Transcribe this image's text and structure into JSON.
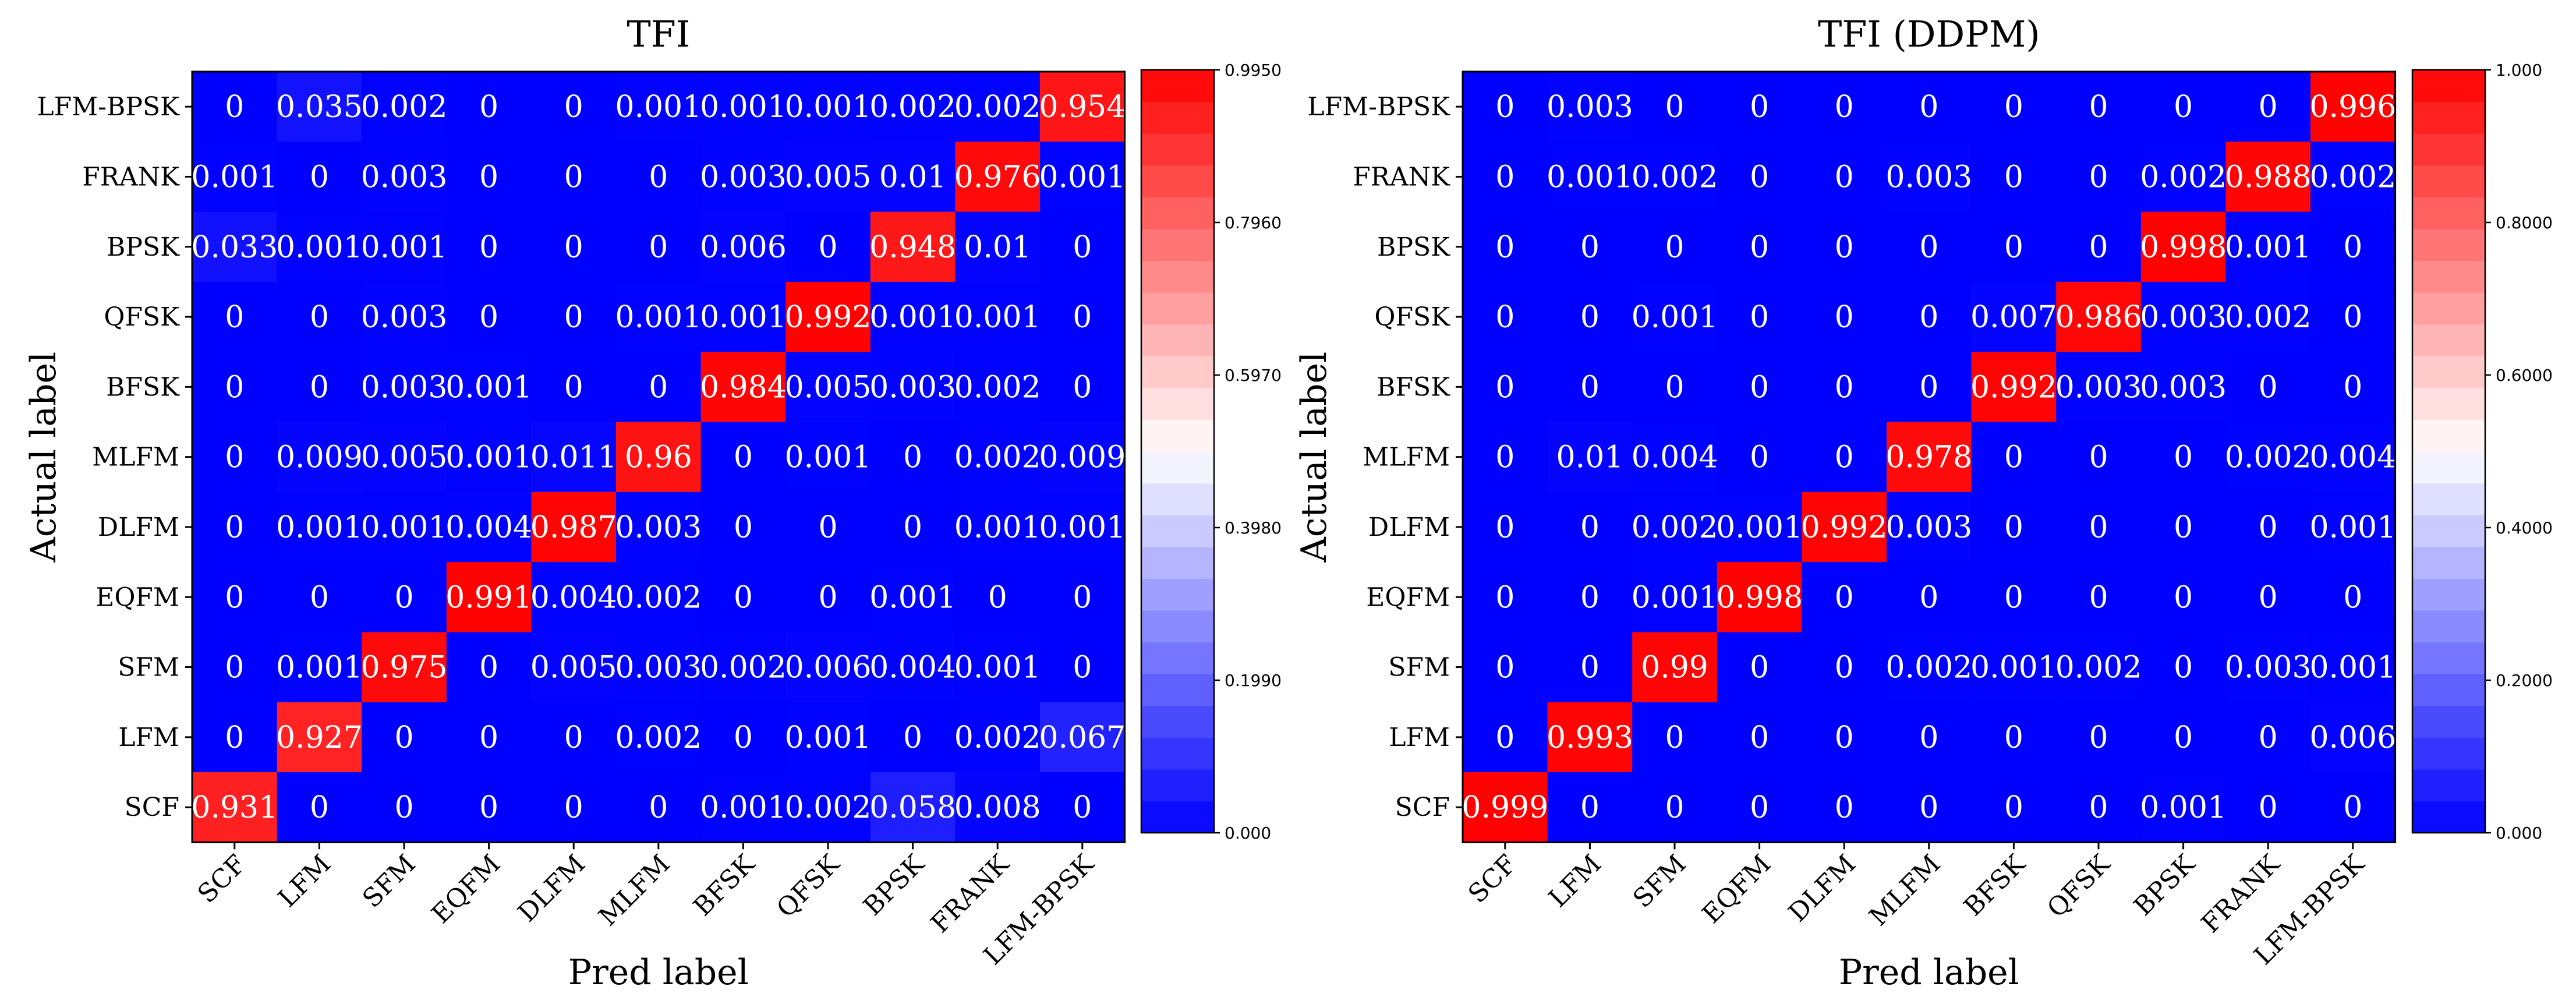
{
  "chart_data": [
    {
      "type": "heatmap",
      "title": "TFI",
      "xlabel": "Pred label",
      "ylabel": "Actual label",
      "x_categories": [
        "SCF",
        "LFM",
        "SFM",
        "EQFM",
        "DLFM",
        "MLFM",
        "BFSK",
        "QFSK",
        "BPSK",
        "FRANK",
        "LFM-BPSK"
      ],
      "y_categories_top_to_bottom": [
        "LFM-BPSK",
        "FRANK",
        "BPSK",
        "QFSK",
        "BFSK",
        "MLFM",
        "DLFM",
        "EQFM",
        "SFM",
        "LFM",
        "SCF"
      ],
      "cells": [
        [
          "0",
          "0.035",
          "0.002",
          "0",
          "0",
          "0.001",
          "0.001",
          "0.001",
          "0.002",
          "0.002",
          "0.954"
        ],
        [
          "0.001",
          "0",
          "0.003",
          "0",
          "0",
          "0",
          "0.003",
          "0.005",
          "0.01",
          "0.976",
          "0.001"
        ],
        [
          "0.033",
          "0.001",
          "0.001",
          "0",
          "0",
          "0",
          "0.006",
          "0",
          "0.948",
          "0.01",
          "0"
        ],
        [
          "0",
          "0",
          "0.003",
          "0",
          "0",
          "0.001",
          "0.001",
          "0.992",
          "0.001",
          "0.001",
          "0"
        ],
        [
          "0",
          "0",
          "0.003",
          "0.001",
          "0",
          "0",
          "0.984",
          "0.005",
          "0.003",
          "0.002",
          "0"
        ],
        [
          "0",
          "0.009",
          "0.005",
          "0.001",
          "0.011",
          "0.96",
          "0",
          "0.001",
          "0",
          "0.002",
          "0.009"
        ],
        [
          "0",
          "0.001",
          "0.001",
          "0.004",
          "0.987",
          "0.003",
          "0",
          "0",
          "0",
          "0.001",
          "0.001"
        ],
        [
          "0",
          "0",
          "0",
          "0.991",
          "0.004",
          "0.002",
          "0",
          "0",
          "0.001",
          "0",
          "0"
        ],
        [
          "0",
          "0.001",
          "0.975",
          "0",
          "0.005",
          "0.003",
          "0.002",
          "0.006",
          "0.004",
          "0.001",
          "0"
        ],
        [
          "0",
          "0.927",
          "0",
          "0",
          "0",
          "0.002",
          "0",
          "0.001",
          "0",
          "0.002",
          "0.067"
        ],
        [
          "0.931",
          "0",
          "0",
          "0",
          "0",
          "0",
          "0.001",
          "0.002",
          "0.058",
          "0.008",
          "0"
        ]
      ],
      "colorbar": {
        "min": 0,
        "max": 0.995,
        "tick_values": [
          0,
          0.199,
          0.398,
          0.597,
          0.796,
          0.995
        ],
        "tick_labels": [
          "0.000",
          "0.1990",
          "0.3980",
          "0.5970",
          "0.7960",
          "0.9950"
        ],
        "colormap": [
          "#0000ff",
          "#ffffff",
          "#ff0000"
        ]
      }
    },
    {
      "type": "heatmap",
      "title": "TFI (DDPM)",
      "xlabel": "Pred label",
      "ylabel": "Actual label",
      "x_categories": [
        "SCF",
        "LFM",
        "SFM",
        "EQFM",
        "DLFM",
        "MLFM",
        "BFSK",
        "QFSK",
        "BPSK",
        "FRANK",
        "LFM-BPSK"
      ],
      "y_categories_top_to_bottom": [
        "LFM-BPSK",
        "FRANK",
        "BPSK",
        "QFSK",
        "BFSK",
        "MLFM",
        "DLFM",
        "EQFM",
        "SFM",
        "LFM",
        "SCF"
      ],
      "cells": [
        [
          "0",
          "0.003",
          "0",
          "0",
          "0",
          "0",
          "0",
          "0",
          "0",
          "0",
          "0.996"
        ],
        [
          "0",
          "0.001",
          "0.002",
          "0",
          "0",
          "0.003",
          "0",
          "0",
          "0.002",
          "0.988",
          "0.002"
        ],
        [
          "0",
          "0",
          "0",
          "0",
          "0",
          "0",
          "0",
          "0",
          "0.998",
          "0.001",
          "0"
        ],
        [
          "0",
          "0",
          "0.001",
          "0",
          "0",
          "0",
          "0.007",
          "0.986",
          "0.003",
          "0.002",
          "0"
        ],
        [
          "0",
          "0",
          "0",
          "0",
          "0",
          "0",
          "0.992",
          "0.003",
          "0.003",
          "0",
          "0"
        ],
        [
          "0",
          "0.01",
          "0.004",
          "0",
          "0",
          "0.978",
          "0",
          "0",
          "0",
          "0.002",
          "0.004"
        ],
        [
          "0",
          "0",
          "0.002",
          "0.001",
          "0.992",
          "0.003",
          "0",
          "0",
          "0",
          "0",
          "0.001"
        ],
        [
          "0",
          "0",
          "0.001",
          "0.998",
          "0",
          "0",
          "0",
          "0",
          "0",
          "0",
          "0"
        ],
        [
          "0",
          "0",
          "0.99",
          "0",
          "0",
          "0.002",
          "0.001",
          "0.002",
          "0",
          "0.003",
          "0.001"
        ],
        [
          "0",
          "0.993",
          "0",
          "0",
          "0",
          "0",
          "0",
          "0",
          "0",
          "0",
          "0.006"
        ],
        [
          "0.999",
          "0",
          "0",
          "0",
          "0",
          "0",
          "0",
          "0",
          "0.001",
          "0",
          "0"
        ]
      ],
      "colorbar": {
        "min": 0,
        "max": 1.0,
        "tick_values": [
          0,
          0.2,
          0.4,
          0.6,
          0.8,
          1.0
        ],
        "tick_labels": [
          "0.000",
          "0.2000",
          "0.4000",
          "0.6000",
          "0.8000",
          "1.000"
        ],
        "colormap": [
          "#0000ff",
          "#ffffff",
          "#ff0000"
        ]
      }
    }
  ]
}
